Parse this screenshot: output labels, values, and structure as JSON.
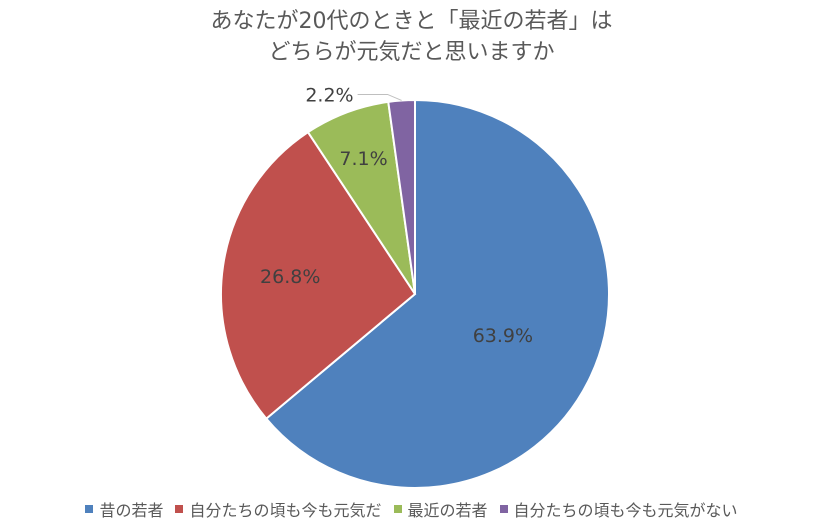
{
  "chart_data": {
    "type": "pie",
    "title_lines": [
      "あなたが20代のときと「最近の若者」は",
      "どちらが元気だと思いますか"
    ],
    "categories": [
      "昔の若者",
      "自分たちの頃も今も元気だ",
      "最近の若者",
      "自分たちの頃も今も元気がない"
    ],
    "values": [
      63.9,
      26.8,
      7.1,
      2.2
    ],
    "labels": [
      "63.9%",
      "26.8%",
      "7.1%",
      "2.2%"
    ],
    "colors": [
      "#4f81bd",
      "#c0504d",
      "#9bbb59",
      "#8064a2"
    ],
    "legend_position": "bottom",
    "start": "12 o'clock",
    "direction": "clockwise"
  }
}
